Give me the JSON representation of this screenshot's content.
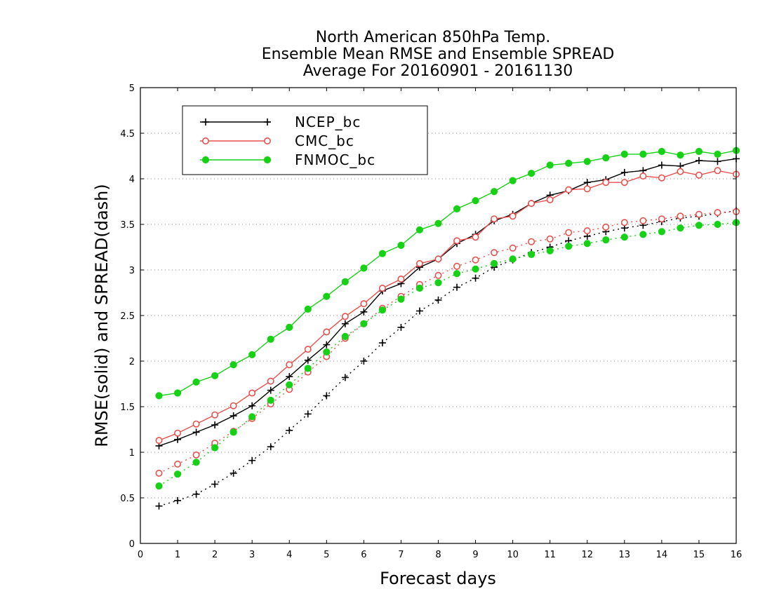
{
  "chart_data": {
    "type": "line",
    "title_lines": [
      "North American 850hPa Temp.",
      "Ensemble Mean RMSE and Ensemble SPREAD",
      "Average For 20160901 - 20161130"
    ],
    "xlabel": "Forecast days",
    "ylabel": "RMSE(solid) and SPREAD(dash)",
    "xlim": [
      0,
      16
    ],
    "ylim": [
      0,
      5
    ],
    "xticks": [
      "0",
      "1",
      "2",
      "3",
      "4",
      "5",
      "6",
      "7",
      "8",
      "9",
      "10",
      "11",
      "12",
      "13",
      "14",
      "15",
      "16"
    ],
    "yticks": [
      "0",
      "0.5",
      "1",
      "1.5",
      "2",
      "2.5",
      "3",
      "3.5",
      "4",
      "4.5",
      "5"
    ],
    "grid": "horizontal-dotted",
    "legend_position": "top-left",
    "x": [
      0.5,
      1,
      1.5,
      2,
      2.5,
      3,
      3.5,
      4,
      4.5,
      5,
      5.5,
      6,
      6.5,
      7,
      7.5,
      8,
      8.5,
      9,
      9.5,
      10,
      10.5,
      11,
      11.5,
      12,
      12.5,
      13,
      13.5,
      14,
      14.5,
      15,
      15.5,
      16
    ],
    "series": [
      {
        "name": "NCEP_bc",
        "color": "#000000",
        "marker": "plus",
        "rmse": [
          1.07,
          1.14,
          1.22,
          1.3,
          1.4,
          1.51,
          1.68,
          1.83,
          2.01,
          2.18,
          2.41,
          2.54,
          2.77,
          2.85,
          3.03,
          3.12,
          3.29,
          3.39,
          3.54,
          3.61,
          3.73,
          3.82,
          3.87,
          3.96,
          3.99,
          4.07,
          4.09,
          4.15,
          4.14,
          4.2,
          4.19,
          4.22
        ],
        "spread": [
          0.41,
          0.47,
          0.54,
          0.65,
          0.77,
          0.91,
          1.06,
          1.24,
          1.42,
          1.62,
          1.82,
          2.0,
          2.2,
          2.37,
          2.55,
          2.67,
          2.81,
          2.91,
          3.03,
          3.11,
          3.19,
          3.25,
          3.32,
          3.37,
          3.42,
          3.46,
          3.49,
          3.53,
          3.57,
          3.59,
          3.62,
          3.65
        ]
      },
      {
        "name": "CMC_bc",
        "color": "#e8504d",
        "marker": "open-circle",
        "rmse": [
          1.13,
          1.21,
          1.31,
          1.41,
          1.51,
          1.65,
          1.78,
          1.96,
          2.13,
          2.32,
          2.49,
          2.63,
          2.8,
          2.9,
          3.07,
          3.12,
          3.32,
          3.36,
          3.56,
          3.59,
          3.73,
          3.77,
          3.88,
          3.89,
          3.96,
          3.96,
          4.03,
          4.01,
          4.08,
          4.04,
          4.09,
          4.05
        ],
        "spread": [
          0.77,
          0.87,
          0.97,
          1.1,
          1.23,
          1.37,
          1.53,
          1.69,
          1.88,
          2.05,
          2.25,
          2.41,
          2.58,
          2.71,
          2.84,
          2.94,
          3.04,
          3.11,
          3.19,
          3.24,
          3.31,
          3.34,
          3.41,
          3.43,
          3.47,
          3.52,
          3.54,
          3.56,
          3.59,
          3.61,
          3.63,
          3.64
        ]
      },
      {
        "name": "FNMOC_bc",
        "color": "#17d117",
        "marker": "filled-circle",
        "rmse": [
          1.62,
          1.65,
          1.77,
          1.84,
          1.96,
          2.07,
          2.24,
          2.37,
          2.57,
          2.71,
          2.87,
          3.02,
          3.18,
          3.27,
          3.44,
          3.51,
          3.67,
          3.76,
          3.86,
          3.98,
          4.06,
          4.15,
          4.17,
          4.19,
          4.23,
          4.27,
          4.27,
          4.3,
          4.26,
          4.3,
          4.27,
          4.31
        ],
        "spread": [
          0.63,
          0.76,
          0.89,
          1.05,
          1.22,
          1.39,
          1.57,
          1.74,
          1.92,
          2.1,
          2.27,
          2.41,
          2.56,
          2.68,
          2.8,
          2.86,
          2.96,
          3.01,
          3.07,
          3.12,
          3.17,
          3.21,
          3.26,
          3.29,
          3.33,
          3.36,
          3.39,
          3.42,
          3.46,
          3.49,
          3.5,
          3.52
        ]
      }
    ]
  }
}
